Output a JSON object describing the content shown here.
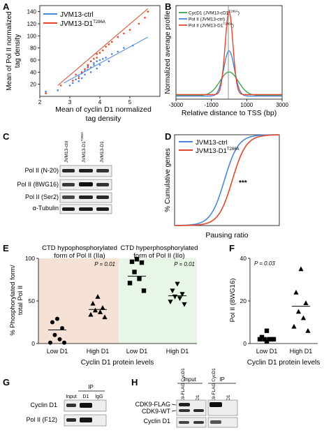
{
  "colors": {
    "blue": "#4a86e0",
    "red": "#e3462a",
    "green": "#3fa34d",
    "tan": "#f6e2d4",
    "mint": "#e8f6e8",
    "axis": "#000000",
    "band": "#1e1e1e"
  },
  "panels": {
    "A": {
      "letter": "A",
      "legend": [
        "JVM13-ctrl",
        "JVM13-D1"
      ],
      "legend_sup": "T286A",
      "ylabel": [
        "Mean of Pol II normalized",
        "tag density"
      ],
      "xlabel": [
        "Mean of cyclin D1 normalized",
        "tag density"
      ],
      "chart_data": {
        "type": "scatter",
        "xlim": [
          2,
          6
        ],
        "ylim": [
          0,
          150
        ],
        "xticks": [
          "2",
          "3",
          "4",
          "5"
        ],
        "yticks": [
          "20",
          "40",
          "60",
          "80",
          "100",
          "120",
          "140"
        ],
        "series": [
          {
            "name": "JVM13-ctrl",
            "color": "#4a86e0",
            "points": [
              [
                2.2,
                8
              ],
              [
                2.6,
                10
              ],
              [
                3.0,
                18
              ],
              [
                3.1,
                22
              ],
              [
                3.2,
                28
              ],
              [
                3.3,
                25
              ],
              [
                3.3,
                33
              ],
              [
                3.4,
                38
              ],
              [
                3.5,
                36
              ],
              [
                3.5,
                42
              ],
              [
                3.6,
                44
              ],
              [
                3.6,
                50
              ],
              [
                3.7,
                48
              ],
              [
                3.8,
                55
              ],
              [
                3.8,
                52
              ],
              [
                3.9,
                58
              ],
              [
                4.0,
                60
              ],
              [
                4.1,
                62
              ],
              [
                4.2,
                64
              ],
              [
                4.4,
                70
              ],
              [
                4.6,
                74
              ],
              [
                4.8,
                80
              ],
              [
                5.1,
                84
              ],
              [
                3.4,
                30
              ],
              [
                3.7,
                40
              ],
              [
                4.0,
                52
              ],
              [
                3.9,
                46
              ],
              [
                4.3,
                58
              ]
            ],
            "fit": [
              [
                2.8,
                22
              ],
              [
                5.6,
                98
              ]
            ]
          },
          {
            "name": "JVM13-D1",
            "sup": "T286A",
            "color": "#e3462a",
            "points": [
              [
                2.2,
                5
              ],
              [
                2.7,
                18
              ],
              [
                3.1,
                26
              ],
              [
                3.3,
                30
              ],
              [
                3.4,
                40
              ],
              [
                3.5,
                45
              ],
              [
                3.6,
                52
              ],
              [
                3.7,
                58
              ],
              [
                3.8,
                62
              ],
              [
                3.9,
                70
              ],
              [
                4.0,
                72
              ],
              [
                4.1,
                76
              ],
              [
                4.2,
                82
              ],
              [
                4.4,
                90
              ],
              [
                4.6,
                98
              ],
              [
                4.8,
                104
              ],
              [
                5.0,
                110
              ],
              [
                5.3,
                120
              ],
              [
                5.5,
                130
              ],
              [
                5.6,
                140
              ],
              [
                3.2,
                36
              ],
              [
                3.6,
                48
              ],
              [
                3.9,
                64
              ],
              [
                4.3,
                86
              ]
            ],
            "fit": [
              [
                2.6,
                18
              ],
              [
                5.6,
                145
              ]
            ]
          }
        ]
      }
    },
    "B": {
      "letter": "B",
      "legend": [
        "CycD1 (JVM13-cD1",
        "Pol II (JVM13-ctrl)",
        "Pol II (JVM13-D1"
      ],
      "legend_sup": [
        "T286A",
        "",
        "T286A"
      ],
      "legend_close": [
        ")",
        "",
        ")"
      ],
      "ylabel": [
        "Normalized average profile"
      ],
      "xlabel": "Relative distance to TSS (bp)",
      "chart_data": {
        "type": "line",
        "xlim": [
          -3000,
          3000
        ],
        "xticks": [
          "-3000",
          "-1000",
          "1000",
          "3000"
        ],
        "xtick_values": [
          -3000,
          -1000,
          1000,
          3000
        ],
        "series": [
          {
            "name": "CycD1 (JVM13-cD1 T286A)",
            "color": "#3fa34d",
            "base": 0.24,
            "peak": 1.8,
            "width": 520
          },
          {
            "name": "Pol II (JVM13-ctrl)",
            "color": "#4a86e0",
            "base": 0.2,
            "peak": 3.2,
            "width": 300
          },
          {
            "name": "Pol II (JVM13-D1 T286A)",
            "color": "#e3462a",
            "base": 0.3,
            "peak": 5.8,
            "width": 220
          }
        ],
        "ylim": [
          0,
          6.2
        ]
      }
    },
    "C": {
      "letter": "C",
      "columns": [
        "JVM13-ctrl",
        "JVM13-D1",
        "JVM13-D1"
      ],
      "column_sup": [
        "",
        "T286A",
        ""
      ],
      "rows": [
        "Pol II (N-20)",
        "Pol II (8WG16)",
        "Pol II (Ser2)",
        "α-Tubulin"
      ]
    },
    "D": {
      "letter": "D",
      "legend": [
        "JVM13-ctrl",
        "JVM13-D1"
      ],
      "legend_sup": "T286A",
      "ylabel": "% Cumulative genes",
      "xlabel": "Pausing ratio",
      "stars": "***",
      "chart_data": {
        "type": "line",
        "xscale": "log",
        "xlim": [
          0.1,
          1000
        ],
        "ylim": [
          0,
          100
        ],
        "series": [
          {
            "name": "JVM13-ctrl",
            "color": "#4a86e0",
            "median": 8
          },
          {
            "name": "JVM13-D1 T286A",
            "color": "#e3462a",
            "median": 16
          }
        ]
      }
    },
    "E": {
      "letter": "E",
      "header_left": [
        "CTD hypophosphorylated",
        "form of Pol II (IIa)"
      ],
      "header_right": [
        "CTD hyperphosphorylated",
        "form of Pol II (IIo)"
      ],
      "ylabel": [
        "% Phosphorylated form/",
        "total Pol II"
      ],
      "pvalue_left": "P = 0.01",
      "pvalue_right": "P = 0.01",
      "xcats": [
        "Low D1",
        "High D1",
        "Low D1",
        "High D1"
      ],
      "xlabel": "Cyclin D1 protein levels",
      "chart_data": {
        "type": "scatter",
        "ylim": [
          0,
          100
        ],
        "yticks": [
          "0",
          "50",
          "100"
        ],
        "groups": [
          {
            "name": "Low D1 (IIa)",
            "marker": "circle",
            "mean": 16,
            "values": [
              29,
              25,
              18,
              10,
              5,
              1,
              1
            ]
          },
          {
            "name": "High D1 (IIa)",
            "marker": "triangle",
            "mean": 40,
            "values": [
              55,
              47,
              42,
              39,
              37,
              34,
              31
            ]
          },
          {
            "name": "Low D1 (IIo)",
            "marker": "square",
            "mean": 79,
            "values": [
              99,
              96,
              95,
              84,
              76,
              71,
              62
            ]
          },
          {
            "name": "High D1 (IIo)",
            "marker": "inverted-triangle",
            "mean": 56,
            "values": [
              70,
              62,
              58,
              55,
              53,
              49,
              46
            ]
          }
        ]
      }
    },
    "F": {
      "letter": "F",
      "pvalue": "P = 0.03",
      "ylabel": "Pol II (8WG16)",
      "xcats": [
        "Low D1",
        "High D1"
      ],
      "xlabel": "Cyclin D1 protein levels",
      "chart_data": {
        "type": "scatter",
        "ylim": [
          0,
          40
        ],
        "yticks": [
          "0",
          "20",
          "40"
        ],
        "groups": [
          {
            "name": "Low D1",
            "marker": "square",
            "mean": 2.5,
            "values": [
              6,
              3,
              2,
              2,
              2,
              2,
              2,
              1
            ]
          },
          {
            "name": "High D1",
            "marker": "triangle",
            "mean": 17.5,
            "values": [
              35,
              24,
              19,
              15,
              12,
              8,
              6
            ]
          }
        ]
      }
    },
    "G": {
      "letter": "G",
      "ip_label": "IP",
      "columns": [
        "Input",
        "D1",
        "IgG"
      ],
      "rows": [
        "Cyclin D1",
        "Pol II (F12)"
      ]
    },
    "H": {
      "letter": "H",
      "input_label": "Input",
      "ip_label": "IP",
      "columns": [
        "CDK9-FLAG CycD1",
        "CycD1",
        "CDK9-FLAG CycD1",
        "CycD1"
      ],
      "rows": [
        "CDK9-FLAG",
        "CDK9-WT",
        "Cyclin D1"
      ]
    }
  }
}
